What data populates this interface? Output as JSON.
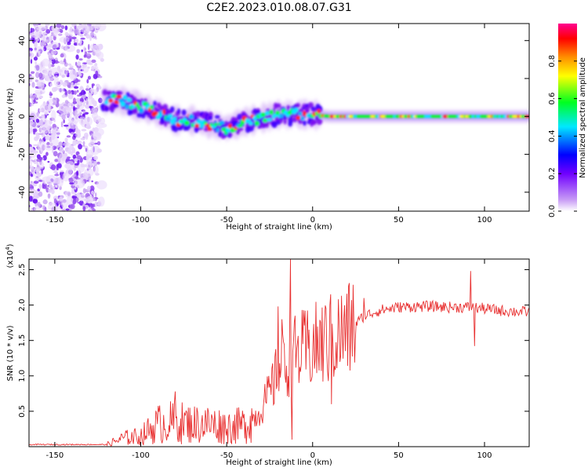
{
  "figure_title": "C2E2.2023.010.08.07.G31",
  "chart_data": [
    {
      "type": "heatmap",
      "xlabel": "Height of straight line (km)",
      "ylabel": "Frequency (Hz)",
      "xlim": [
        -165,
        126
      ],
      "ylim": [
        -50,
        49
      ],
      "xticks": [
        -150,
        -100,
        -50,
        0,
        50,
        100
      ],
      "yticks": [
        -40,
        -20,
        0,
        20,
        40
      ],
      "grid": false,
      "colorbar": {
        "label": "Normalized spectral amplitude",
        "range": [
          0.0,
          1.0
        ],
        "ticks": [
          0.0,
          0.2,
          0.4,
          0.6,
          0.8
        ],
        "colormap": [
          "#ffffff",
          "#b06cf0",
          "#3a00ff",
          "#00e0ff",
          "#00ff00",
          "#ffff00",
          "#ff9800",
          "#ff0000",
          "#ff00a0"
        ]
      },
      "ridge_center_hz": [
        {
          "x": -125,
          "y": 9
        },
        {
          "x": -110,
          "y": 8
        },
        {
          "x": -100,
          "y": 5
        },
        {
          "x": -90,
          "y": 2
        },
        {
          "x": -80,
          "y": -2
        },
        {
          "x": -70,
          "y": -2
        },
        {
          "x": -60,
          "y": -4
        },
        {
          "x": -50,
          "y": -6
        },
        {
          "x": -40,
          "y": -3
        },
        {
          "x": -30,
          "y": -1
        },
        {
          "x": -20,
          "y": 1
        },
        {
          "x": -10,
          "y": 1
        },
        {
          "x": 0,
          "y": 1
        },
        {
          "x": 10,
          "y": 0
        },
        {
          "x": 50,
          "y": 0
        },
        {
          "x": 100,
          "y": 0
        },
        {
          "x": 126,
          "y": 0
        }
      ],
      "noise_region_x": [
        -165,
        -122
      ]
    },
    {
      "type": "line",
      "xlabel": "Height of straight line (km)",
      "ylabel": "SNR (10 * v/v)",
      "y_multiplier": "(x10",
      "y_multiplier_exp": "4",
      "y_multiplier_close": ")",
      "xlim": [
        -165,
        126
      ],
      "ylim": [
        0,
        2.65
      ],
      "xticks": [
        -150,
        -100,
        -50,
        0,
        50,
        100
      ],
      "yticks": [
        0.5,
        1.0,
        1.5,
        2.0,
        2.5
      ],
      "grid": false,
      "series": [
        {
          "color": "#e83030",
          "envelope": [
            {
              "x": -165,
              "y": 0.03
            },
            {
              "x": -120,
              "y": 0.03
            },
            {
              "x": -110,
              "y": 0.12
            },
            {
              "x": -100,
              "y": 0.15
            },
            {
              "x": -90,
              "y": 0.32
            },
            {
              "x": -80,
              "y": 0.35
            },
            {
              "x": -70,
              "y": 0.32
            },
            {
              "x": -60,
              "y": 0.32
            },
            {
              "x": -50,
              "y": 0.28
            },
            {
              "x": -40,
              "y": 0.3
            },
            {
              "x": -32,
              "y": 0.45
            },
            {
              "x": -25,
              "y": 0.75
            },
            {
              "x": -20,
              "y": 1.05
            },
            {
              "x": -15,
              "y": 1.2
            },
            {
              "x": -10,
              "y": 1.3
            },
            {
              "x": 0,
              "y": 1.4
            },
            {
              "x": 10,
              "y": 1.5
            },
            {
              "x": 20,
              "y": 1.62
            },
            {
              "x": 30,
              "y": 1.85
            },
            {
              "x": 40,
              "y": 1.93
            },
            {
              "x": 50,
              "y": 1.97
            },
            {
              "x": 60,
              "y": 1.98
            },
            {
              "x": 70,
              "y": 1.98
            },
            {
              "x": 80,
              "y": 1.97
            },
            {
              "x": 90,
              "y": 1.97
            },
            {
              "x": 100,
              "y": 1.95
            },
            {
              "x": 110,
              "y": 1.92
            },
            {
              "x": 126,
              "y": 1.9
            }
          ],
          "peaks": [
            {
              "x": -80,
              "y": 0.78
            },
            {
              "x": -20,
              "y": 1.98
            },
            {
              "x": -18,
              "y": 1.8
            },
            {
              "x": -13,
              "y": 2.65
            },
            {
              "x": -12,
              "y": 0.1
            },
            {
              "x": 10,
              "y": 2.0
            },
            {
              "x": 11,
              "y": 0.6
            },
            {
              "x": 30,
              "y": 2.1
            },
            {
              "x": 92,
              "y": 2.48
            },
            {
              "x": 94,
              "y": 1.42
            }
          ]
        }
      ]
    }
  ]
}
